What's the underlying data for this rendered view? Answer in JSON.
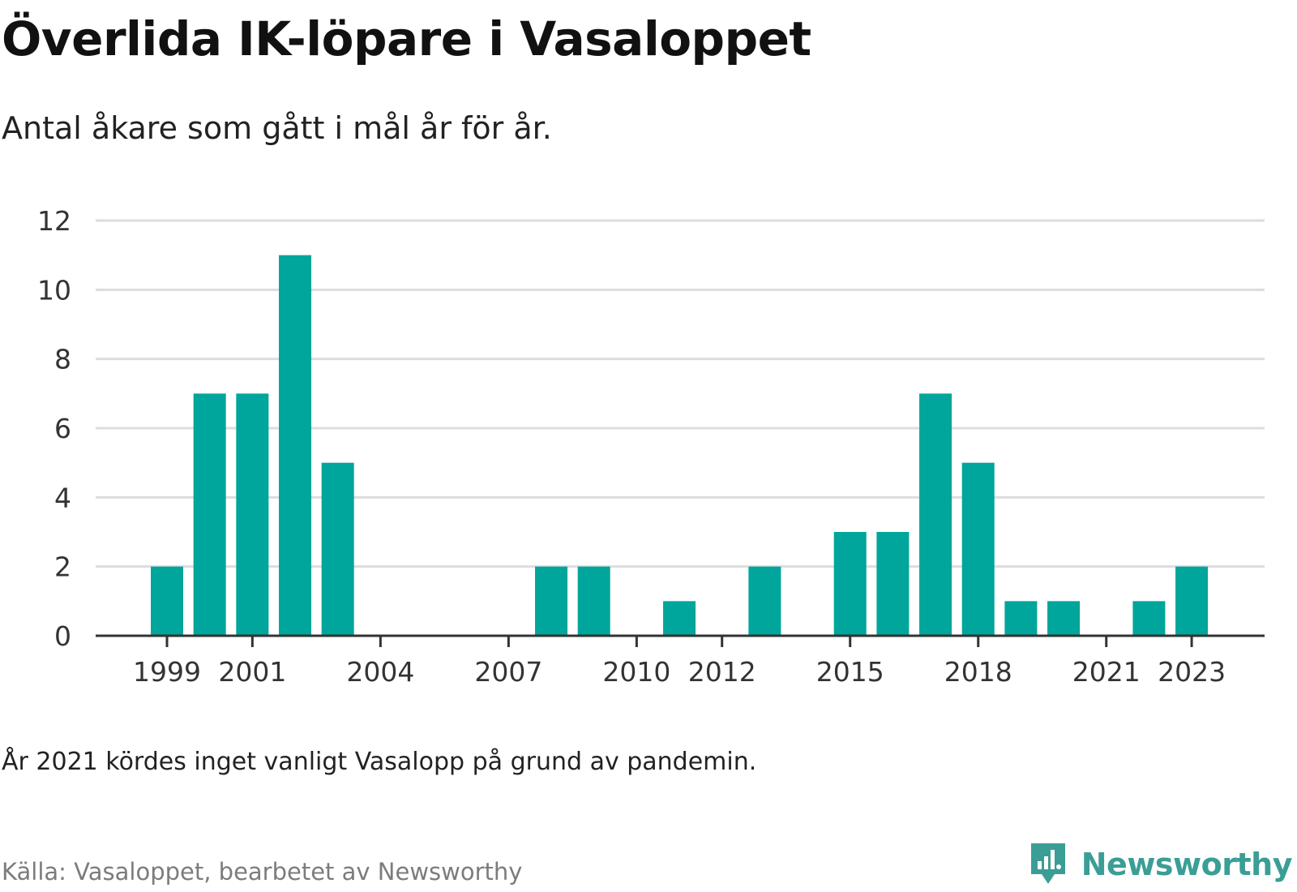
{
  "header": {
    "title": "Överlida IK-löpare i Vasaloppet",
    "subtitle": "Antal åkare som gått i mål år för år."
  },
  "footer": {
    "note": "År 2021 kördes inget vanligt Vasalopp på grund av pandemin.",
    "source": "Källa: Vasaloppet, bearbetet av Newsworthy",
    "brand": "Newsworthy"
  },
  "colors": {
    "bar": "#00a59b",
    "grid": "#dddddd",
    "axis": "#333333",
    "brand": "#3a9e96"
  },
  "chart_data": {
    "type": "bar",
    "categories": [
      "1999",
      "2000",
      "2001",
      "2002",
      "2003",
      "2004",
      "2005",
      "2006",
      "2007",
      "2008",
      "2009",
      "2010",
      "2011",
      "2012",
      "2013",
      "2014",
      "2015",
      "2016",
      "2017",
      "2018",
      "2019",
      "2020",
      "2021",
      "2022",
      "2023"
    ],
    "values": [
      2,
      7,
      7,
      11,
      5,
      0,
      0,
      0,
      0,
      2,
      2,
      0,
      1,
      0,
      2,
      0,
      3,
      3,
      7,
      5,
      1,
      1,
      0,
      1,
      2
    ],
    "x_tick_labels": [
      "1999",
      "2001",
      "2004",
      "2007",
      "2010",
      "2012",
      "2015",
      "2018",
      "2021",
      "2023"
    ],
    "y_tick_labels": [
      "0",
      "2",
      "4",
      "6",
      "8",
      "10",
      "12"
    ],
    "ylim": [
      0,
      12
    ],
    "grid": true,
    "legend": "none"
  }
}
